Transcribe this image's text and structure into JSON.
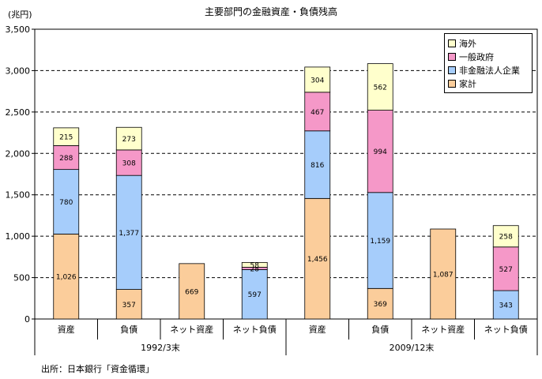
{
  "title": "主要部門の金融資産・負債残高",
  "unit_label": "(兆円)",
  "source": "出所：日本銀行「資金循環」",
  "colors": {
    "household": "#fbcd9b",
    "corporate": "#a6cdfb",
    "government": "#f598c8",
    "overseas": "#ffffcc"
  },
  "chart_data": {
    "type": "bar",
    "stacked": true,
    "title": "主要部門の金融資産・負債残高",
    "ylabel": "(兆円)",
    "ylim": [
      0,
      3500
    ],
    "yticks": [
      0,
      500,
      1000,
      1500,
      2000,
      2500,
      3000,
      3500
    ],
    "ytick_labels": [
      "0",
      "500",
      "1,000",
      "1,500",
      "2,000",
      "2,500",
      "3,000",
      "3,500"
    ],
    "grid": true,
    "legend_position": "top-right",
    "categories": [
      "資産",
      "負債",
      "ネット資産",
      "ネット負債",
      "資産",
      "負債",
      "ネット資産",
      "ネット負債"
    ],
    "groups": [
      {
        "label": "1992/3末",
        "span": [
          0,
          3
        ]
      },
      {
        "label": "2009/12末",
        "span": [
          4,
          7
        ]
      }
    ],
    "series": [
      {
        "name": "家計",
        "color_key": "household",
        "values": [
          1026,
          357,
          669,
          null,
          1456,
          369,
          1087,
          null
        ],
        "labels": [
          "1,026",
          "357",
          "669",
          null,
          "1,456",
          "369",
          "1,087",
          null
        ]
      },
      {
        "name": "非金融法人企業",
        "color_key": "corporate",
        "values": [
          780,
          1377,
          null,
          597,
          816,
          1159,
          null,
          343
        ],
        "labels": [
          "780",
          "1,377",
          null,
          "597",
          "816",
          "1,159",
          null,
          "343"
        ]
      },
      {
        "name": "一般政府",
        "color_key": "government",
        "values": [
          288,
          308,
          null,
          28,
          467,
          994,
          null,
          527
        ],
        "labels": [
          "288",
          "308",
          null,
          "28",
          "467",
          "994",
          null,
          "527"
        ]
      },
      {
        "name": "海外",
        "color_key": "overseas",
        "values": [
          215,
          273,
          null,
          58,
          304,
          562,
          null,
          258
        ],
        "labels": [
          "215",
          "273",
          null,
          "58",
          "304",
          "562",
          null,
          "258"
        ]
      }
    ],
    "legend_order": [
      "海外",
      "一般政府",
      "非金融法人企業",
      "家計"
    ]
  }
}
